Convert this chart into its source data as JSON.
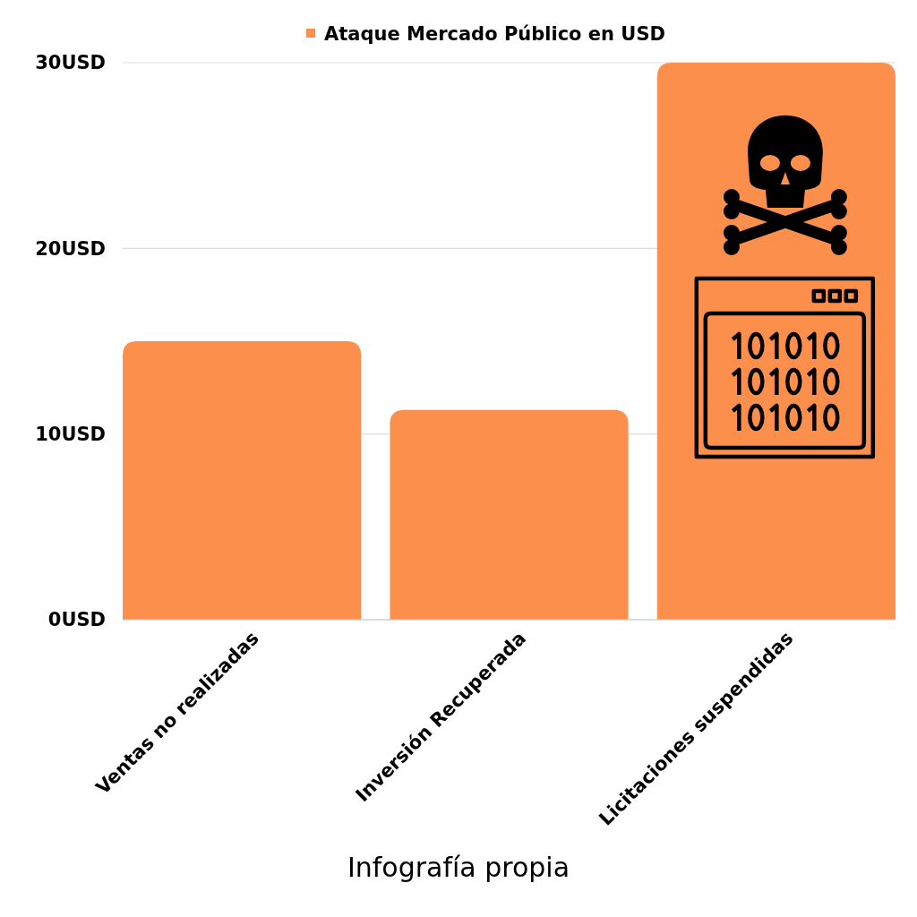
{
  "chart_data": {
    "type": "bar",
    "categories": [
      "Ventas no realizadas",
      "Inversión Recuperada",
      "Licitaciones suspendidas"
    ],
    "series": [
      {
        "name": "Ataque Mercado Público en USD",
        "color": "#fd8f4d",
        "values": [
          15,
          11.3,
          30
        ]
      }
    ],
    "ylim": [
      0,
      30
    ],
    "yticks": [
      {
        "value": 0,
        "label": "0USD"
      },
      {
        "value": 10,
        "label": "10USD"
      },
      {
        "value": 20,
        "label": "20USD"
      },
      {
        "value": 30,
        "label": "30USD"
      }
    ],
    "grid": "y",
    "legend": "top",
    "annotations": [
      "Infografía propia"
    ]
  }
}
